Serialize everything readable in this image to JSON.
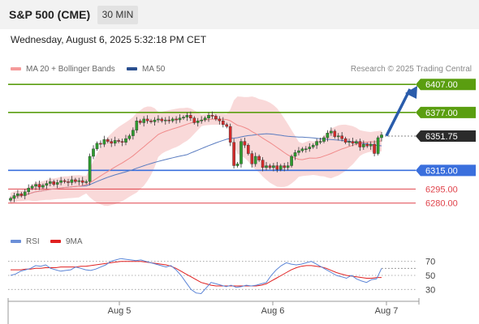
{
  "header": {
    "title": "S&P 500 (CME)",
    "timeframe": "30 MIN"
  },
  "datetime": "Wednesday, August 6, 2025 5:32:18 PM CET",
  "legend": {
    "bb": "MA 20 + Bollinger Bands",
    "ma50": "MA 50",
    "rsi": "RSI",
    "rsi_ma": "9MA"
  },
  "copyright": "Research © 2025 Trading Central",
  "colors": {
    "green": "#5a9e10",
    "blue": "#3a6fdd",
    "red": "#e0424a",
    "arrow": "#2a5cab",
    "up": "#2e9b2e",
    "down": "#d42a2a",
    "band": "#f8cfcf",
    "ma20": "#f08a8a",
    "ma50": "#5a7cc0"
  },
  "chart_data": [
    {
      "type": "candlestick",
      "title": "S&P 500 (CME)",
      "x_ticks": [
        "Aug 5",
        "Aug 6",
        "Aug 7"
      ],
      "ylim": [
        6265,
        6415
      ],
      "levels": [
        {
          "label": "6407.00",
          "value": 6407,
          "kind": "resistance"
        },
        {
          "label": "6377.00",
          "value": 6377,
          "kind": "resistance"
        },
        {
          "label": "6351.75",
          "value": 6351.75,
          "kind": "last"
        },
        {
          "label": "6315.00",
          "value": 6315,
          "kind": "pivot"
        },
        {
          "label": "6295.00",
          "value": 6295,
          "kind": "support"
        },
        {
          "label": "6280.00",
          "value": 6280,
          "kind": "support"
        }
      ],
      "close": [
        6285,
        6288,
        6290,
        6288,
        6292,
        6296,
        6298,
        6300,
        6297,
        6299,
        6301,
        6303,
        6300,
        6302,
        6304,
        6303,
        6302,
        6305,
        6303,
        6304,
        6302,
        6303,
        6330,
        6338,
        6344,
        6343,
        6348,
        6346,
        6344,
        6347,
        6346,
        6345,
        6349,
        6352,
        6358,
        6368,
        6366,
        6370,
        6368,
        6367,
        6369,
        6370,
        6368,
        6369,
        6368,
        6370,
        6369,
        6371,
        6372,
        6374,
        6371,
        6366,
        6368,
        6369,
        6371,
        6374,
        6373,
        6370,
        6368,
        6364,
        6362,
        6345,
        6320,
        6322,
        6346,
        6342,
        6333,
        6322,
        6330,
        6326,
        6318,
        6320,
        6318,
        6320,
        6316,
        6320,
        6318,
        6320,
        6330,
        6334,
        6336,
        6338,
        6338,
        6340,
        6342,
        6346,
        6346,
        6350,
        6355,
        6357,
        6351,
        6352,
        6349,
        6345,
        6346,
        6344,
        6346,
        6340,
        6343,
        6341,
        6343,
        6333,
        6350,
        6353
      ]
    },
    {
      "type": "line",
      "title": "RSI",
      "x_ticks": [
        "Aug 5",
        "Aug 6",
        "Aug 7"
      ],
      "y_ticks": [
        70,
        50,
        30
      ],
      "ylim": [
        20,
        80
      ],
      "series": [
        {
          "name": "RSI",
          "values": [
            50,
            52,
            56,
            58,
            60,
            64,
            63,
            65,
            60,
            58,
            56,
            57,
            58,
            62,
            60,
            58,
            57,
            59,
            62,
            65,
            70,
            72,
            74,
            73,
            72,
            71,
            72,
            70,
            68,
            66,
            64,
            62,
            64,
            58,
            50,
            40,
            30,
            25,
            24,
            32,
            40,
            38,
            36,
            34,
            36,
            33,
            34,
            36,
            35,
            36,
            38,
            40,
            50,
            58,
            64,
            68,
            66,
            65,
            66,
            68,
            70,
            66,
            62,
            58,
            54,
            50,
            48,
            46,
            50,
            45,
            42,
            40,
            44,
            45,
            60
          ]
        },
        {
          "name": "9MA",
          "values": [
            58,
            58,
            58,
            59,
            59,
            60,
            60,
            61,
            61,
            61,
            62,
            62,
            62,
            62,
            63,
            63,
            64,
            65,
            66,
            67,
            68,
            69,
            70,
            70,
            70,
            70,
            70,
            69,
            68,
            67,
            66,
            65,
            63,
            60,
            56,
            52,
            48,
            44,
            40,
            38,
            36,
            35,
            35,
            35,
            35,
            35,
            35,
            35,
            35,
            35,
            36,
            38,
            42,
            46,
            50,
            54,
            58,
            61,
            63,
            64,
            64,
            63,
            62,
            60,
            57,
            54,
            52,
            50,
            49,
            48,
            47,
            46,
            46,
            47,
            47
          ]
        }
      ]
    }
  ]
}
